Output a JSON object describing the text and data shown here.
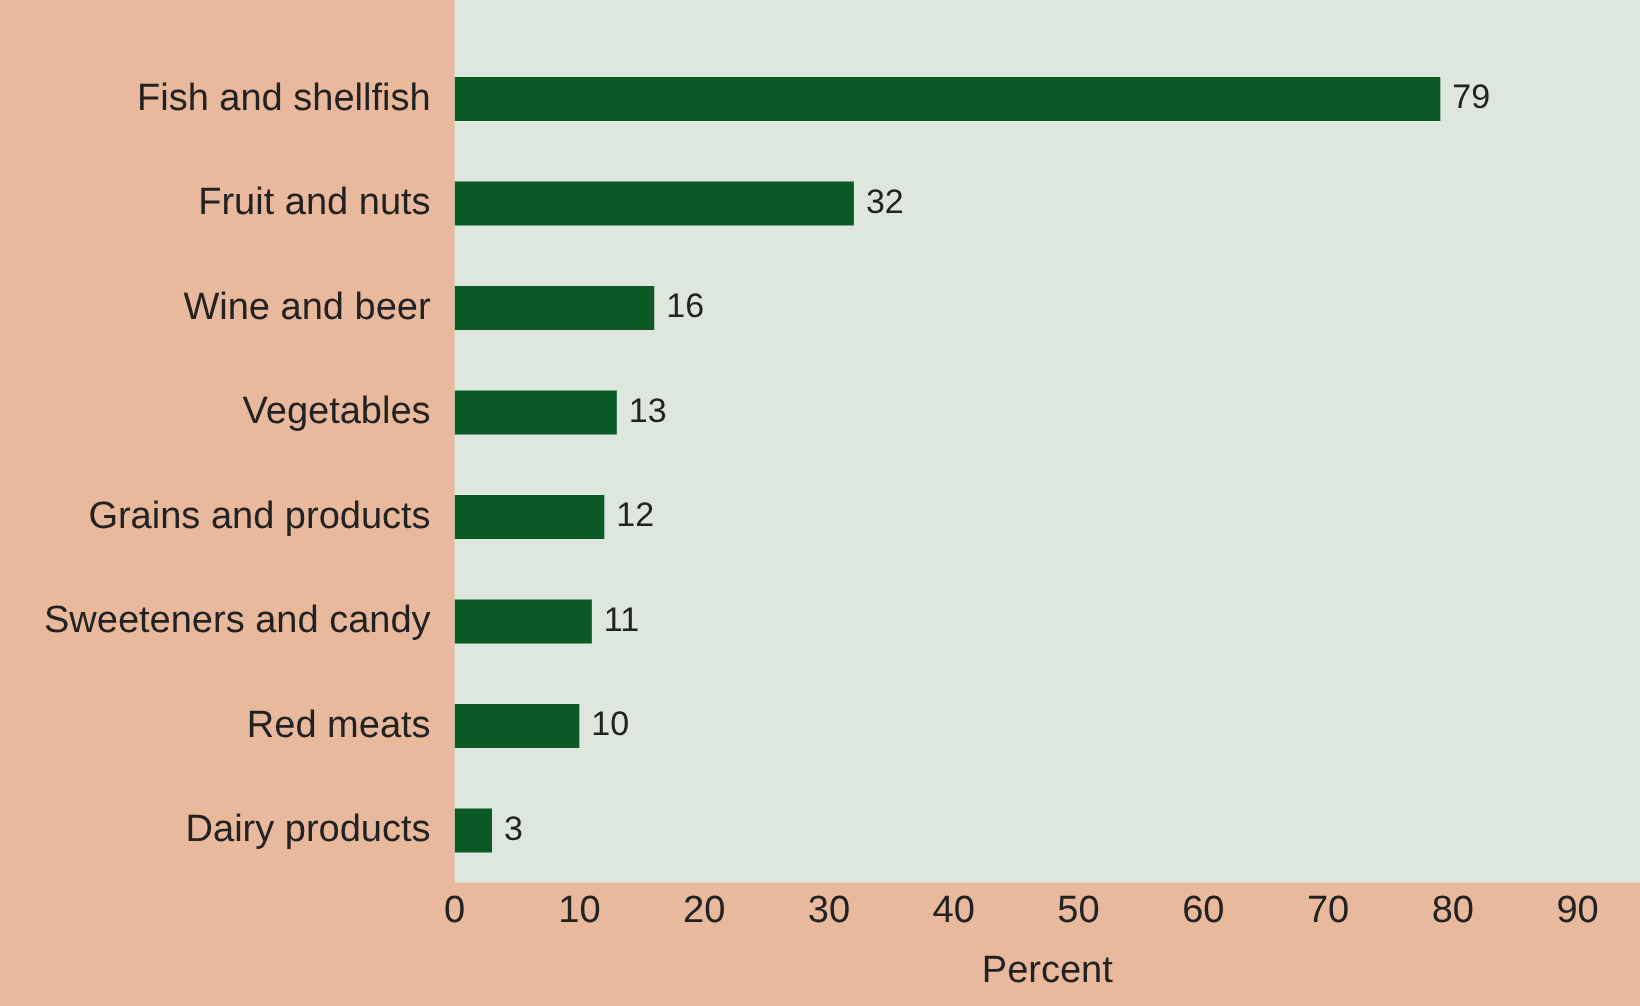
{
  "chart_data": {
    "type": "bar",
    "orientation": "horizontal",
    "xlabel": "Percent",
    "categories": [
      "Fish and shellfish",
      "Fruit and nuts",
      "Wine and beer",
      "Vegetables",
      "Grains and products",
      "Sweeteners and candy",
      "Red meats",
      "Dairy products"
    ],
    "values": [
      79,
      32,
      16,
      13,
      12,
      11,
      10,
      3
    ],
    "color": "#0b5a26",
    "xlim": [
      0,
      95
    ],
    "xticks": [
      0,
      10,
      20,
      30,
      40,
      50,
      60,
      70,
      80,
      90
    ],
    "grid": false,
    "legend": false,
    "data_labels": true
  }
}
